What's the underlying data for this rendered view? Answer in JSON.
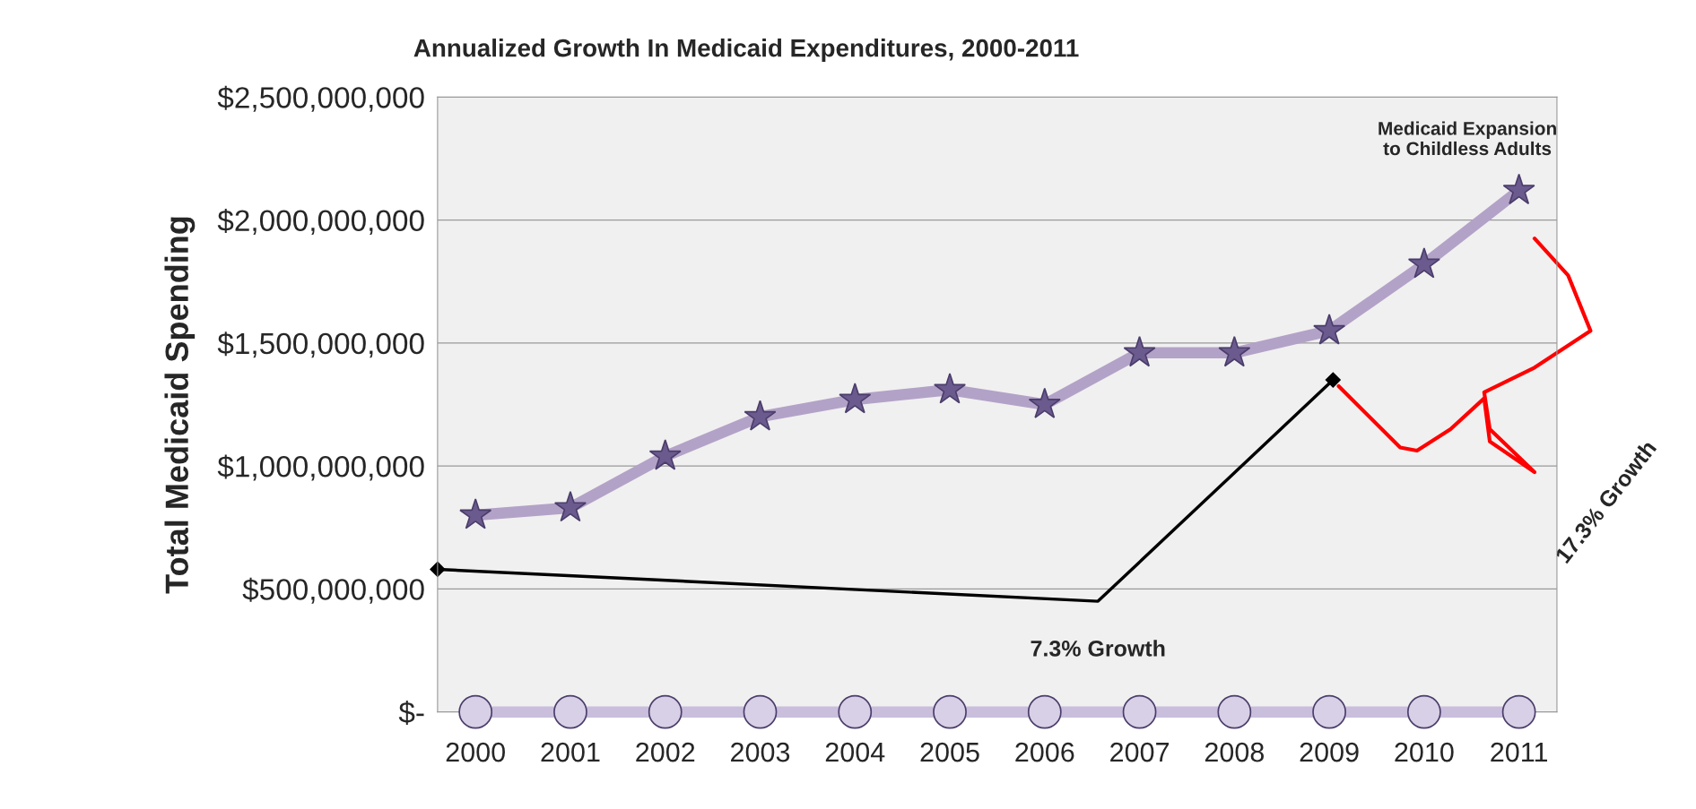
{
  "chart_data": {
    "type": "line",
    "title": "Annualized Growth In Medicaid Expenditures, 2000-2011",
    "ylabel": "Total Medicaid Spending",
    "categories": [
      "2000",
      "2001",
      "2002",
      "2003",
      "2004",
      "2005",
      "2006",
      "2007",
      "2008",
      "2009",
      "2010",
      "2011"
    ],
    "series": [
      {
        "color": "#b3a2c7",
        "marker": "star",
        "values": [
          800000000,
          830000000,
          1040000000,
          1200000000,
          1270000000,
          1310000000,
          1250000000,
          1460000000,
          1460000000,
          1550000000,
          1820000000,
          2120000000
        ]
      },
      {
        "color": "#c9bedc",
        "marker": "circle",
        "values": [
          0,
          0,
          0,
          0,
          0,
          0,
          0,
          0,
          0,
          0,
          0,
          0
        ]
      }
    ],
    "ylim": [
      0,
      2500000000
    ],
    "yticks": [
      {
        "value": 0,
        "label": "$-"
      },
      {
        "value": 500000000,
        "label": "$500,000,000"
      },
      {
        "value": 1000000000,
        "label": "$1,000,000,000"
      },
      {
        "value": 1500000000,
        "label": "$1,500,000,000"
      },
      {
        "value": 2000000000,
        "label": "$2,000,000,000"
      },
      {
        "value": 2500000000,
        "label": "$2,500,000,000"
      }
    ],
    "grid": "y",
    "legend": false,
    "line_style": "solid",
    "annotations": [
      "Medicaid Expansion\nto Childless Adults",
      "7.3% Growth",
      "17.3% Growth"
    ]
  }
}
